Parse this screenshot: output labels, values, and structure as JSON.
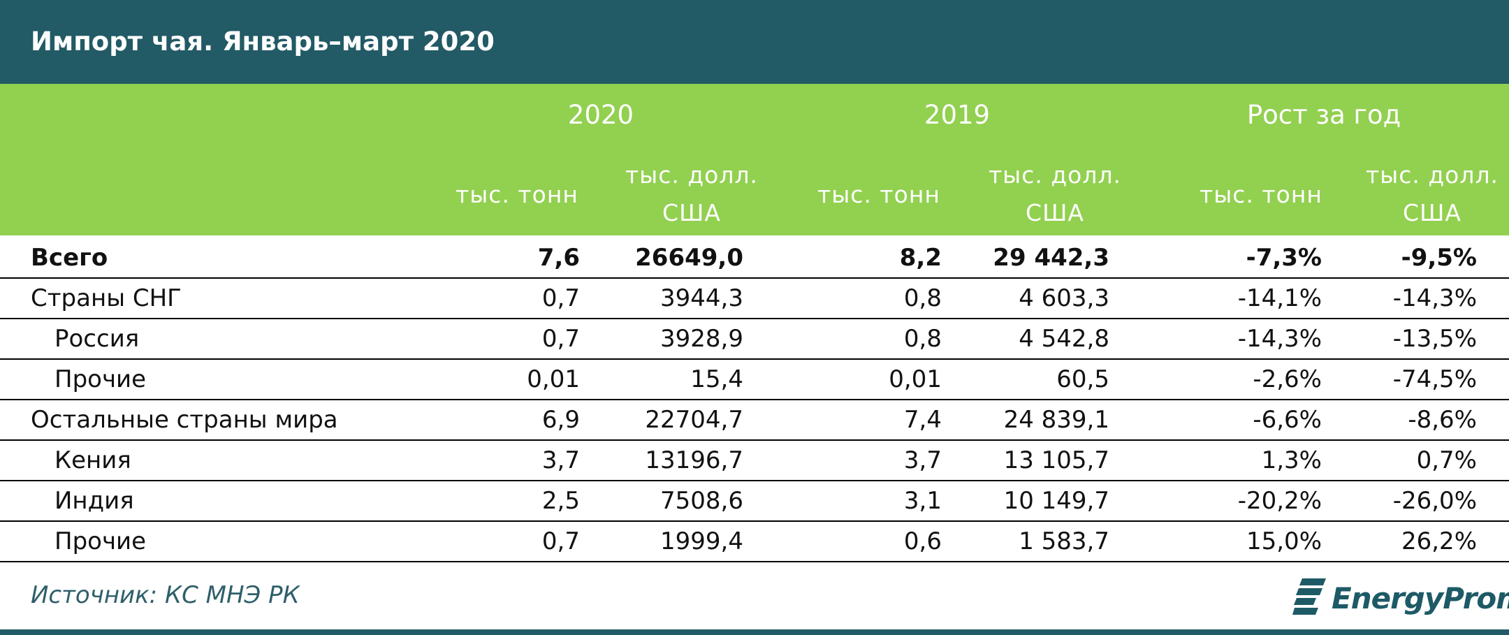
{
  "title": "Импорт чая. Январь–март 2020",
  "header": {
    "groups": [
      "2020",
      "2019",
      "Рост за год"
    ],
    "unit_tons": "тыс. тонн",
    "unit_usd_line1": "тыс. долл.",
    "unit_usd_line2": "США"
  },
  "rows": [
    {
      "label": "Всего",
      "t2020": "7,6",
      "d2020": "26649,0",
      "t2019": "8,2",
      "d2019": "29 442,3",
      "gt": "-7,3%",
      "gd": "-9,5%"
    },
    {
      "label": "Страны СНГ",
      "t2020": "0,7",
      "d2020": "3944,3",
      "t2019": "0,8",
      "d2019": "4 603,3",
      "gt": "-14,1%",
      "gd": "-14,3%"
    },
    {
      "label": "Россия",
      "t2020": "0,7",
      "d2020": "3928,9",
      "t2019": "0,8",
      "d2019": "4 542,8",
      "gt": "-14,3%",
      "gd": "-13,5%"
    },
    {
      "label": "Прочие",
      "t2020": "0,01",
      "d2020": "15,4",
      "t2019": "0,01",
      "d2019": "60,5",
      "gt": "-2,6%",
      "gd": "-74,5%"
    },
    {
      "label": "Остальные страны мира",
      "t2020": "6,9",
      "d2020": "22704,7",
      "t2019": "7,4",
      "d2019": "24 839,1",
      "gt": "-6,6%",
      "gd": "-8,6%"
    },
    {
      "label": "Кения",
      "t2020": "3,7",
      "d2020": "13196,7",
      "t2019": "3,7",
      "d2019": "13 105,7",
      "gt": "1,3%",
      "gd": "0,7%"
    },
    {
      "label": "Индия",
      "t2020": "2,5",
      "d2020": "7508,6",
      "t2019": "3,1",
      "d2019": "10 149,7",
      "gt": "-20,2%",
      "gd": "-26,0%"
    },
    {
      "label": "Прочие",
      "t2020": "0,7",
      "d2020": "1999,4",
      "t2019": "0,6",
      "d2019": "1 583,7",
      "gt": "15,0%",
      "gd": "26,2%"
    }
  ],
  "source": "Источник: КС МНЭ РК",
  "logo": {
    "text": "EnergyProm",
    "icon": "energyprom-logo-icon"
  },
  "colors": {
    "title_bg": "#225a66",
    "header_bg": "#92d050",
    "source_text": "#2f5f6b"
  }
}
